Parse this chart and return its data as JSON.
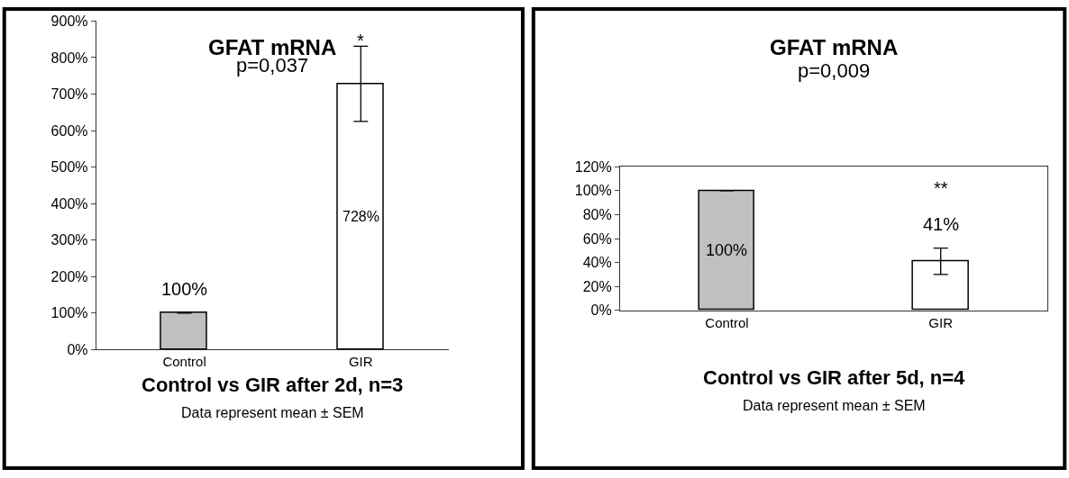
{
  "chart_data": [
    {
      "type": "bar",
      "title": "GFAT mRNA",
      "subtitle": "p=0,037",
      "xlabel": "Control vs GIR after 2d, n=3",
      "categories": [
        "Control",
        "GIR"
      ],
      "values": [
        100,
        728
      ],
      "colors": [
        "#c0c0c0",
        "#ffffff"
      ],
      "errors": [
        null,
        103
      ],
      "value_labels": [
        "100%",
        "728%"
      ],
      "ylim": [
        0,
        900
      ],
      "yticks": [
        {
          "value": 0,
          "label": "0%"
        },
        {
          "value": 100,
          "label": "100%"
        },
        {
          "value": 200,
          "label": "200%"
        },
        {
          "value": 300,
          "label": "300%"
        },
        {
          "value": 400,
          "label": "400%"
        },
        {
          "value": 500,
          "label": "500%"
        },
        {
          "value": 600,
          "label": "600%"
        },
        {
          "value": 700,
          "label": "700%"
        },
        {
          "value": 800,
          "label": "800%"
        },
        {
          "value": 900,
          "label": "900%"
        }
      ],
      "annotations": [
        "*",
        "Data represent mean ± SEM"
      ]
    },
    {
      "type": "bar",
      "title": "GFAT mRNA",
      "subtitle": "p=0,009",
      "xlabel": "Control vs GIR after 5d, n=4",
      "categories": [
        "Control",
        "GIR"
      ],
      "values": [
        100,
        41
      ],
      "colors": [
        "#c0c0c0",
        "#ffffff"
      ],
      "errors": [
        null,
        11
      ],
      "value_labels": [
        "100%",
        "41%"
      ],
      "ylim": [
        0,
        120
      ],
      "yticks": [
        {
          "value": 0,
          "label": "0%"
        },
        {
          "value": 20,
          "label": "20%"
        },
        {
          "value": 40,
          "label": "40%"
        },
        {
          "value": 60,
          "label": "60%"
        },
        {
          "value": 80,
          "label": "80%"
        },
        {
          "value": 100,
          "label": "100%"
        },
        {
          "value": 120,
          "label": "120%"
        }
      ],
      "annotations": [
        "**",
        "Data represent mean ± SEM"
      ]
    }
  ]
}
